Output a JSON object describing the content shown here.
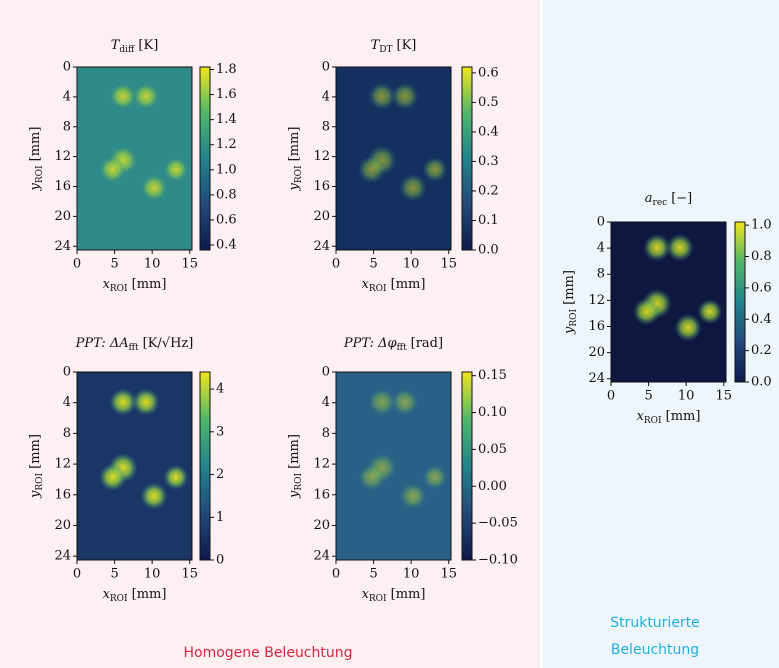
{
  "chart_data": [
    {
      "type": "heatmap",
      "title": {
        "symbol": "T",
        "sub": "diff",
        "unit": "[K]"
      },
      "color": "#2f8a8a",
      "colormap": "viridis",
      "xlabel": {
        "symbol": "x",
        "sub": "ROI",
        "unit": "[mm]"
      },
      "ylabel": {
        "symbol": "y",
        "sub": "ROI",
        "unit": "[mm]"
      },
      "xlim": [
        0,
        15.3
      ],
      "xticks": [
        0,
        5,
        10,
        15
      ],
      "ylim": [
        0,
        24.5
      ],
      "yticks": [
        0,
        4,
        8,
        12,
        16,
        20,
        24
      ],
      "clim": [
        0.36,
        1.82
      ],
      "cticks": [
        0.4,
        0.6,
        0.8,
        {
          "value": 1,
          "label": "1.0"
        },
        1.2,
        1.4,
        1.6,
        1.8
      ]
    },
    {
      "type": "heatmap",
      "title": {
        "symbol": "T",
        "sub": "DT",
        "unit": "[K]"
      },
      "color": "#15305e",
      "colormap": "viridis",
      "xlabel": {
        "symbol": "x",
        "sub": "ROI",
        "unit": "[mm]"
      },
      "ylabel": {
        "symbol": "y",
        "sub": "ROI",
        "unit": "[mm]"
      },
      "xlim": [
        0,
        15.3
      ],
      "xticks": [
        0,
        5,
        10,
        15
      ],
      "ylim": [
        0,
        24.5
      ],
      "yticks": [
        0,
        4,
        8,
        12,
        16,
        20,
        24
      ],
      "clim": [
        0,
        0.62
      ],
      "cticks": [
        {
          "value": 0,
          "label": "0.0"
        },
        0.1,
        0.2,
        0.3,
        0.4,
        0.5,
        0.6
      ]
    },
    {
      "type": "heatmap",
      "title": {
        "symbol": "PPT: ΔA",
        "sub": "fft",
        "unit": "[K/√Hz]"
      },
      "color": "#1b3566",
      "colormap": "viridis",
      "xlabel": {
        "symbol": "x",
        "sub": "ROI",
        "unit": "[mm]"
      },
      "ylabel": {
        "symbol": "y",
        "sub": "ROI",
        "unit": "[mm]"
      },
      "xlim": [
        0,
        15.3
      ],
      "xticks": [
        0,
        5,
        10,
        15
      ],
      "ylim": [
        0,
        24.5
      ],
      "yticks": [
        0,
        4,
        8,
        12,
        16,
        20,
        24
      ],
      "clim": [
        0,
        4.4
      ],
      "cticks": [
        0,
        1,
        2,
        3,
        4
      ]
    },
    {
      "type": "heatmap",
      "title": {
        "symbol": "PPT: Δφ",
        "sub": "fft",
        "unit": "[rad]"
      },
      "color": "#2a5f86",
      "colormap": "viridis",
      "xlabel": {
        "symbol": "x",
        "sub": "ROI",
        "unit": "[mm]"
      },
      "ylabel": {
        "symbol": "y",
        "sub": "ROI",
        "unit": "[mm]"
      },
      "xlim": [
        0,
        15.3
      ],
      "xticks": [
        0,
        5,
        10,
        15
      ],
      "ylim": [
        0,
        24.5
      ],
      "yticks": [
        0,
        4,
        8,
        12,
        16,
        20,
        24
      ],
      "clim": [
        -0.1,
        0.155
      ],
      "cticks": [
        {
          "value": -0.1,
          "label": "−0.10"
        },
        {
          "value": -0.05,
          "label": "−0.05"
        },
        {
          "value": 0,
          "label": "0.00"
        },
        {
          "value": 0.05,
          "label": "0.05"
        },
        {
          "value": 0.1,
          "label": "0.10"
        },
        {
          "value": 0.15,
          "label": "0.15"
        }
      ]
    },
    {
      "type": "heatmap",
      "title": {
        "symbol": "a",
        "sub": "rec",
        "unit": "[−]"
      },
      "color": "#0f1640",
      "colormap": "viridis",
      "xlabel": {
        "symbol": "x",
        "sub": "ROI",
        "unit": "[mm]"
      },
      "ylabel": {
        "symbol": "y",
        "sub": "ROI",
        "unit": "[mm]"
      },
      "xlim": [
        0,
        15.3
      ],
      "xticks": [
        0,
        5,
        10,
        15
      ],
      "ylim": [
        0,
        24.5
      ],
      "yticks": [
        0,
        4,
        8,
        12,
        16,
        20,
        24
      ],
      "clim": [
        0,
        1.02
      ],
      "cticks": [
        {
          "value": 0,
          "label": "0.0"
        },
        0.2,
        0.4,
        0.6,
        0.8,
        {
          "value": 1,
          "label": "1.0"
        }
      ]
    }
  ],
  "captions": {
    "left": "Homogene Beleuchtung",
    "right": [
      "Strukturierte",
      "Beleuchtung"
    ]
  }
}
